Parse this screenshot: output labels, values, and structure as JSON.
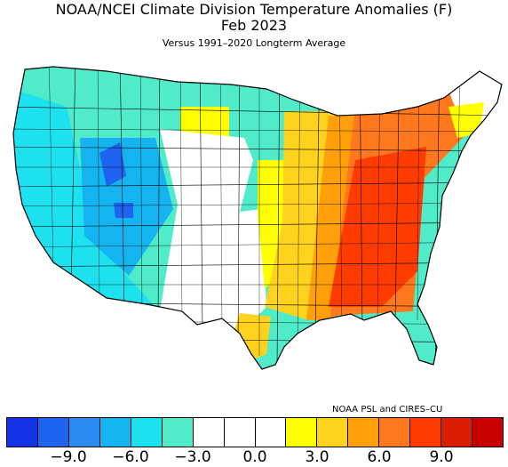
{
  "header": {
    "title_line1": "NOAA/NCEI Climate Division Temperature Anomalies (F)",
    "title_line2": "Feb 2023",
    "subtitle": "Versus 1991–2020 Longterm Average"
  },
  "credit": "NOAA PSL and CIRES–CU",
  "legend": {
    "colors": [
      "#1432e6",
      "#1e64f0",
      "#288cf0",
      "#14b4f0",
      "#1ee1f0",
      "#50ebc8",
      "#ffffff",
      "#ffffff",
      "#ffffff",
      "#ffff00",
      "#ffd21e",
      "#ffa00a",
      "#ff781e",
      "#ff3c00",
      "#dc1e00",
      "#c80000"
    ],
    "ticks": [
      {
        "label": "−9.0",
        "value": -9.0
      },
      {
        "label": "−6.0",
        "value": -6.0
      },
      {
        "label": "−3.0",
        "value": -3.0
      },
      {
        "label": "0.0",
        "value": 0.0
      },
      {
        "label": "3.0",
        "value": 3.0
      },
      {
        "label": "6.0",
        "value": 6.0
      },
      {
        "label": "9.0",
        "value": 9.0
      }
    ]
  },
  "map": {
    "colors": {
      "outline": "#000000",
      "cold_blue": "#1e64f0",
      "blue": "#14b4f0",
      "cyan": "#1ee1f0",
      "teal": "#50ebc8",
      "white": "#ffffff",
      "yellow": "#ffff00",
      "gold": "#ffd21e",
      "orange": "#ffa00a",
      "dark_orange": "#ff781e",
      "red": "#ff3c00"
    }
  }
}
